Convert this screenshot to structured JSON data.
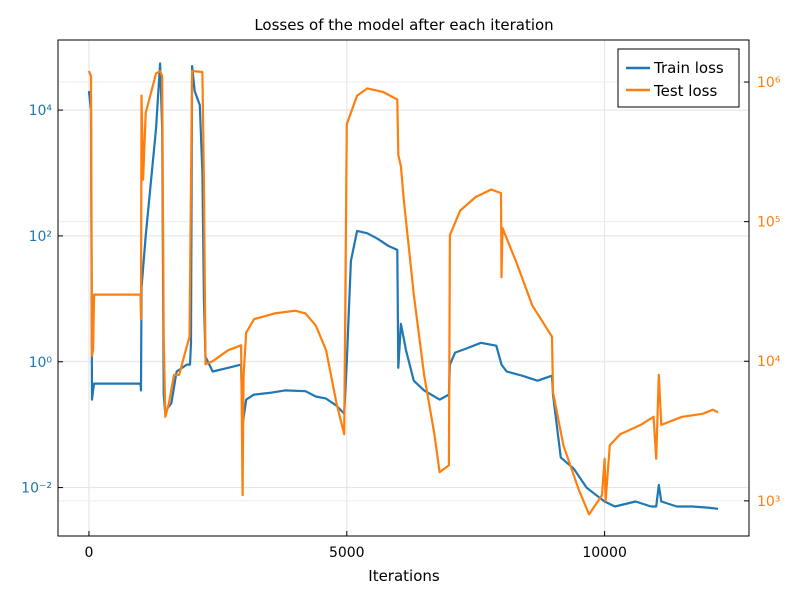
{
  "chart_data": {
    "type": "line",
    "title": "Losses of the model after each iteration",
    "xlabel": "Iterations",
    "ylabel_left": "",
    "ylabel_right": "",
    "x_ticks": [
      0,
      5000,
      10000
    ],
    "x_tick_labels": [
      "0",
      "5000",
      "10000"
    ],
    "xlim": [
      -600,
      12800
    ],
    "left_axis": {
      "scale": "log",
      "ylim": [
        0.0017,
        130000
      ],
      "ticks": [
        0.01,
        1,
        100,
        10000
      ],
      "tick_labels": [
        "10⁻²",
        "10⁰",
        "10²",
        "10⁴"
      ],
      "color": "#1f77b4"
    },
    "right_axis": {
      "scale": "log",
      "ylim": [
        560,
        2000000
      ],
      "ticks": [
        1000,
        10000,
        100000,
        1000000
      ],
      "tick_labels": [
        "10³",
        "10⁴",
        "10⁵",
        "10⁶"
      ],
      "color": "#ff7f0e"
    },
    "grid": true,
    "legend_position": "top-right",
    "series": [
      {
        "name": "Train loss",
        "axis": "left",
        "color": "#1f77b4",
        "points": [
          [
            0,
            20000
          ],
          [
            40,
            10000
          ],
          [
            60,
            0.25
          ],
          [
            80,
            0.35
          ],
          [
            100,
            0.45
          ],
          [
            1000,
            0.45
          ],
          [
            1010,
            0.35
          ],
          [
            1020,
            15
          ],
          [
            1100,
            100
          ],
          [
            1300,
            5000
          ],
          [
            1380,
            55000
          ],
          [
            1420,
            5000
          ],
          [
            1450,
            0.3
          ],
          [
            1480,
            0.15
          ],
          [
            1520,
            0.18
          ],
          [
            1600,
            0.22
          ],
          [
            1700,
            0.7
          ],
          [
            1900,
            0.9
          ],
          [
            1960,
            0.9
          ],
          [
            1980,
            2
          ],
          [
            2000,
            50000
          ],
          [
            2050,
            20000
          ],
          [
            2150,
            12000
          ],
          [
            2200,
            1000
          ],
          [
            2230,
            10
          ],
          [
            2260,
            1.2
          ],
          [
            2400,
            0.7
          ],
          [
            2700,
            0.8
          ],
          [
            2950,
            0.9
          ],
          [
            2980,
            0.1
          ],
          [
            3050,
            0.25
          ],
          [
            3200,
            0.3
          ],
          [
            3500,
            0.32
          ],
          [
            3800,
            0.35
          ],
          [
            4200,
            0.34
          ],
          [
            4400,
            0.28
          ],
          [
            4600,
            0.26
          ],
          [
            4800,
            0.2
          ],
          [
            4950,
            0.15
          ],
          [
            5000,
            1
          ],
          [
            5080,
            40
          ],
          [
            5200,
            120
          ],
          [
            5400,
            110
          ],
          [
            5600,
            90
          ],
          [
            5800,
            70
          ],
          [
            5980,
            60
          ],
          [
            6000,
            0.8
          ],
          [
            6050,
            4
          ],
          [
            6150,
            1.5
          ],
          [
            6300,
            0.5
          ],
          [
            6500,
            0.35
          ],
          [
            6800,
            0.25
          ],
          [
            6980,
            0.3
          ],
          [
            7000,
            0.9
          ],
          [
            7100,
            1.4
          ],
          [
            7300,
            1.6
          ],
          [
            7600,
            2
          ],
          [
            7900,
            1.8
          ],
          [
            8000,
            0.9
          ],
          [
            8100,
            0.7
          ],
          [
            8400,
            0.6
          ],
          [
            8700,
            0.5
          ],
          [
            8980,
            0.6
          ],
          [
            9000,
            0.3
          ],
          [
            9150,
            0.03
          ],
          [
            9400,
            0.02
          ],
          [
            9650,
            0.01
          ],
          [
            9800,
            0.008
          ],
          [
            10000,
            0.006
          ],
          [
            10200,
            0.005
          ],
          [
            10600,
            0.006
          ],
          [
            10900,
            0.005
          ],
          [
            11000,
            0.005
          ],
          [
            11050,
            0.011
          ],
          [
            11100,
            0.006
          ],
          [
            11400,
            0.005
          ],
          [
            11700,
            0.005
          ],
          [
            12000,
            0.0048
          ],
          [
            12200,
            0.0046
          ]
        ]
      },
      {
        "name": "Test loss",
        "axis": "right",
        "color": "#ff7f0e",
        "points": [
          [
            0,
            1200000
          ],
          [
            40,
            1100000
          ],
          [
            60,
            11000
          ],
          [
            80,
            12000
          ],
          [
            100,
            30000
          ],
          [
            1000,
            30000
          ],
          [
            1010,
            20000
          ],
          [
            1020,
            800000
          ],
          [
            1050,
            200000
          ],
          [
            1100,
            600000
          ],
          [
            1300,
            1150000
          ],
          [
            1380,
            1200000
          ],
          [
            1420,
            1100000
          ],
          [
            1450,
            15000
          ],
          [
            1480,
            4000
          ],
          [
            1550,
            5000
          ],
          [
            1650,
            8000
          ],
          [
            1750,
            8000
          ],
          [
            1850,
            11000
          ],
          [
            1950,
            15000
          ],
          [
            2000,
            1200000
          ],
          [
            2200,
            1180000
          ],
          [
            2230,
            200000
          ],
          [
            2260,
            9500
          ],
          [
            2400,
            10000
          ],
          [
            2700,
            12000
          ],
          [
            2950,
            13000
          ],
          [
            2980,
            1100
          ],
          [
            3000,
            8000
          ],
          [
            3050,
            16000
          ],
          [
            3200,
            20000
          ],
          [
            3600,
            22000
          ],
          [
            4000,
            23000
          ],
          [
            4200,
            22000
          ],
          [
            4400,
            18000
          ],
          [
            4600,
            12000
          ],
          [
            4800,
            5000
          ],
          [
            4950,
            3000
          ],
          [
            5000,
            500000
          ],
          [
            5200,
            800000
          ],
          [
            5400,
            900000
          ],
          [
            5700,
            850000
          ],
          [
            5980,
            750000
          ],
          [
            6000,
            300000
          ],
          [
            6050,
            250000
          ],
          [
            6100,
            150000
          ],
          [
            6300,
            30000
          ],
          [
            6500,
            8000
          ],
          [
            6700,
            3000
          ],
          [
            6800,
            1600
          ],
          [
            6980,
            1800
          ],
          [
            7000,
            80000
          ],
          [
            7200,
            120000
          ],
          [
            7500,
            150000
          ],
          [
            7800,
            170000
          ],
          [
            7990,
            160000
          ],
          [
            8000,
            40000
          ],
          [
            8020,
            90000
          ],
          [
            8300,
            50000
          ],
          [
            8600,
            25000
          ],
          [
            8980,
            15000
          ],
          [
            9000,
            6000
          ],
          [
            9200,
            2500
          ],
          [
            9500,
            1200
          ],
          [
            9700,
            800
          ],
          [
            9950,
            1100
          ],
          [
            10000,
            2000
          ],
          [
            10020,
            1000
          ],
          [
            10100,
            2500
          ],
          [
            10300,
            3000
          ],
          [
            10700,
            3500
          ],
          [
            10950,
            4000
          ],
          [
            11000,
            2000
          ],
          [
            11050,
            8000
          ],
          [
            11100,
            3500
          ],
          [
            11500,
            4000
          ],
          [
            11900,
            4200
          ],
          [
            12100,
            4500
          ],
          [
            12200,
            4300
          ]
        ]
      }
    ]
  }
}
